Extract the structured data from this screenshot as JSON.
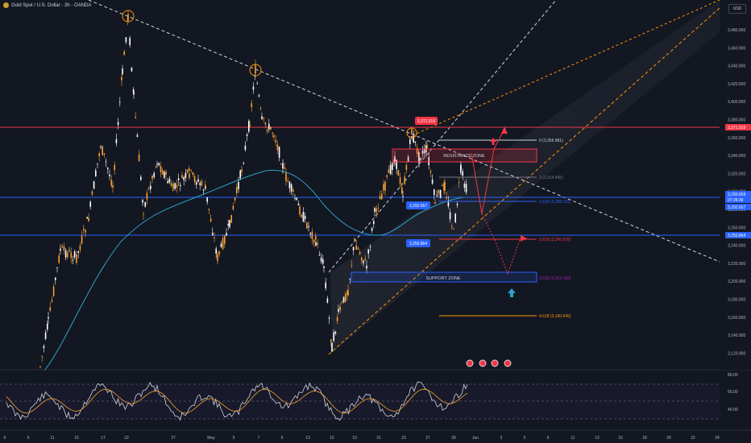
{
  "header": {
    "symbol_title": "Gold Spot / U.S. Dollar - 3h - OANDA"
  },
  "currency_button": "USD",
  "price_axis": {
    "ticks": [
      "3,480.000",
      "3,460.000",
      "3,440.000",
      "3,420.000",
      "3,400.000",
      "3,380.000",
      "3,360.000",
      "3,340.000",
      "3,320.000",
      "3,300.000",
      "3,280.000",
      "3,260.000",
      "3,240.000",
      "3,220.000",
      "3,200.000",
      "3,180.000",
      "3,160.000",
      "3,140.000",
      "3,120.000"
    ]
  },
  "price_tags": [
    {
      "text": "3,371.019",
      "color": "#f23645"
    },
    {
      "text": "3,293.659",
      "color": "#2962ff"
    },
    {
      "text": "07:26:30",
      "color": "#2962ff"
    },
    {
      "text": "3,292.657",
      "color": "#2962ff"
    },
    {
      "text": "3,250.864",
      "color": "#2962ff"
    }
  ],
  "chart_labels": {
    "peak_tag": "3,371.019",
    "blue_tag_1": "3,292.657",
    "blue_tag_2": "3,250.864",
    "resistance_zone": "RESISTANCE ZONE",
    "support_zone": "SUPPORT ZONE"
  },
  "fib_levels": [
    {
      "text": "0 (3,356.981)",
      "color": "#d1d4dc"
    },
    {
      "text": "1 (3,314.465)",
      "color": "#787b86"
    },
    {
      "text": "1.618 (3,288.191)",
      "color": "#2962ff"
    },
    {
      "text": "2.618 (3,245.676)",
      "color": "#f23645"
    },
    {
      "text": "3.618 (3,203.160)",
      "color": "#9c27b0"
    },
    {
      "text": "4.618 (3,160.645)",
      "color": "#ff9800"
    }
  ],
  "rsi_axis": {
    "ticks": [
      "80.00",
      "60.00",
      "40.00"
    ]
  },
  "time_axis": {
    "ticks": [
      "6",
      "9",
      "11",
      "15",
      "17",
      "22",
      "27",
      "May",
      "5",
      "7",
      "9",
      "13",
      "15",
      "19",
      "21",
      "23",
      "27",
      "29",
      "Jun",
      "3",
      "5",
      "9",
      "11",
      "13",
      "16",
      "18",
      "20",
      "22",
      "24",
      "27"
    ]
  },
  "colors": {
    "background": "#131722",
    "candle_up": "#ffffff",
    "candle_down": "#f7a031",
    "resistance": "#f23645",
    "support": "#2962ff",
    "ma": "#2aa3c8",
    "channel": "#ff9800",
    "rsi": "#d1d4dc",
    "rsi_ma": "#f7a031"
  }
}
